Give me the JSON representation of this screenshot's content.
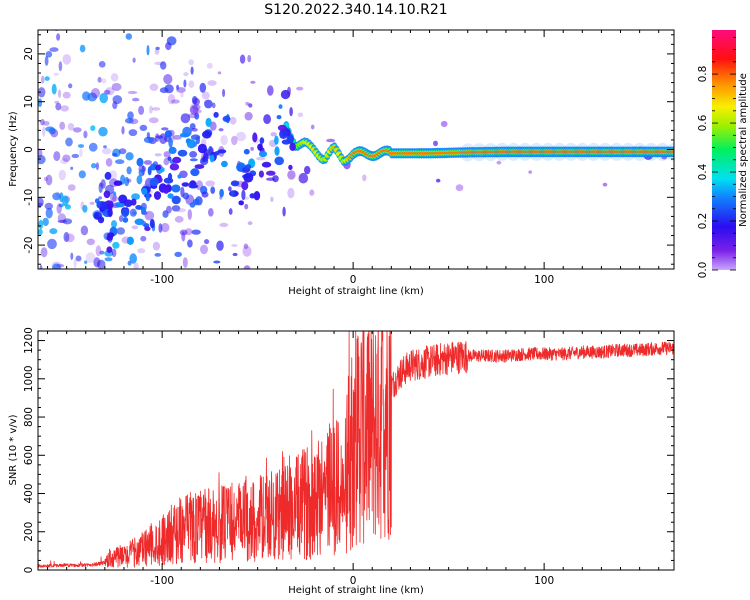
{
  "figure_title": "S120.2022.340.14.10.R21",
  "colors": {
    "snr_line": "#ee2a2a",
    "ridge": "#e8303a",
    "background_speckle": "#7b22e8"
  },
  "chart_data": [
    {
      "type": "heatmap",
      "xlabel": "Height of straight line (km)",
      "ylabel": "Frequency (Hz)",
      "xlim": [
        -165,
        168
      ],
      "ylim": [
        -25,
        25
      ],
      "xticks": [
        -100,
        0,
        100
      ],
      "yticks": [
        -20,
        -10,
        0,
        10,
        20
      ],
      "colorbar": {
        "label": "Normalized spectral amplitude",
        "range": [
          0.0,
          0.98
        ],
        "ticks": [
          0.0,
          0.2,
          0.4,
          0.6,
          0.8
        ],
        "colormap": "rainbow (purple → blue → cyan → green → yellow → red → magenta)"
      },
      "ridge": {
        "x": [
          -165,
          -150,
          -140,
          -130,
          -120,
          -110,
          -100,
          -90,
          -80,
          -70,
          -60,
          -50,
          -40,
          -35,
          -30,
          -25,
          -20,
          -15,
          -10,
          -5,
          0,
          10,
          20,
          40,
          60,
          80,
          100,
          120,
          140,
          168
        ],
        "frequency": [
          -8,
          -10,
          -12,
          -12.5,
          -11,
          -9,
          -6,
          -3,
          1,
          0,
          -4,
          -3,
          2,
          5,
          1,
          1,
          0,
          -2,
          0,
          -2,
          -1,
          -0.8,
          -0.8,
          -0.8,
          -0.6,
          -0.5,
          -0.5,
          -0.5,
          -0.5,
          -0.5
        ],
        "amplitude": [
          0.05,
          0.1,
          0.15,
          0.2,
          0.25,
          0.25,
          0.3,
          0.3,
          0.35,
          0.3,
          0.35,
          0.35,
          0.4,
          0.4,
          0.55,
          0.65,
          0.7,
          0.6,
          0.75,
          0.6,
          0.85,
          0.8,
          0.85,
          0.9,
          0.9,
          0.95,
          0.95,
          0.95,
          0.95,
          0.95
        ]
      }
    },
    {
      "type": "line",
      "xlabel": "Height of straight line (km)",
      "ylabel": "SNR (10 * v/v)",
      "xlim": [
        -165,
        168
      ],
      "ylim": [
        0,
        1250
      ],
      "xticks": [
        -100,
        0,
        100
      ],
      "yticks": [
        0,
        200,
        400,
        600,
        800,
        1000,
        1200
      ],
      "series": [
        {
          "x": [
            -165,
            -150,
            -140,
            -130,
            -125,
            -120,
            -110,
            -100,
            -90,
            -80,
            -70,
            -60,
            -50,
            -40,
            -30,
            -20,
            -15,
            -10,
            -5,
            0,
            5,
            10,
            15,
            20,
            25,
            30,
            40,
            50,
            60,
            70,
            80,
            90,
            100,
            110,
            120,
            130,
            140,
            150,
            160,
            168
          ],
          "values": [
            20,
            25,
            25,
            35,
            70,
            70,
            110,
            160,
            210,
            230,
            240,
            250,
            260,
            290,
            320,
            380,
            420,
            460,
            380,
            720,
            760,
            720,
            860,
            960,
            1030,
            1070,
            1090,
            1110,
            1120,
            1120,
            1120,
            1130,
            1130,
            1130,
            1140,
            1140,
            1150,
            1150,
            1160,
            1160
          ]
        }
      ]
    }
  ]
}
